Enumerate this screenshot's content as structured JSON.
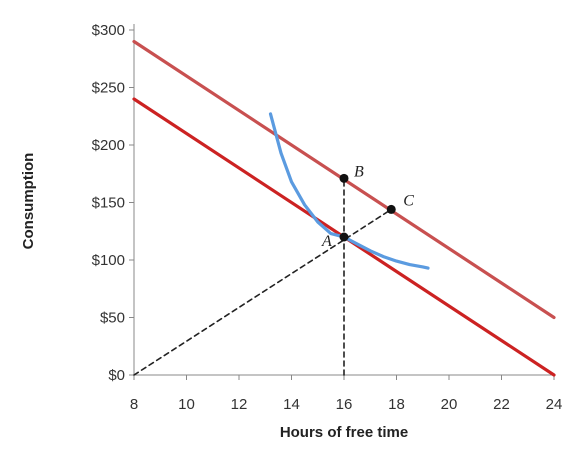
{
  "chart_data": {
    "type": "line",
    "title": "",
    "xlabel": "Hours of free time",
    "ylabel": "Consumption",
    "xlim": [
      8,
      24
    ],
    "ylim": [
      0,
      300
    ],
    "x_ticks": [
      8,
      10,
      12,
      14,
      16,
      18,
      20,
      22,
      24
    ],
    "x_tick_labels": [
      "8",
      "10",
      "12",
      "14",
      "16",
      "18",
      "20",
      "22",
      "24"
    ],
    "y_ticks": [
      0,
      50,
      100,
      150,
      200,
      250,
      300
    ],
    "y_tick_labels": [
      "$0",
      "$50",
      "$100",
      "$150",
      "$200",
      "$250",
      "$300"
    ],
    "grid": false,
    "legend": "none",
    "series": [
      {
        "color": "#cc2222",
        "style": "solid",
        "x": [
          8,
          24
        ],
        "y": [
          240,
          0
        ]
      },
      {
        "color": "#c85050",
        "style": "solid",
        "x": [
          8,
          24
        ],
        "y": [
          290,
          50
        ]
      },
      {
        "color": "#5b9be0",
        "style": "solid",
        "x": [
          13.2,
          13.6,
          14.0,
          14.5,
          15.0,
          15.5,
          16.0,
          16.5,
          17.0,
          17.5,
          18.0,
          18.5,
          19.0,
          19.2
        ],
        "y": [
          227,
          193,
          168,
          148,
          133,
          123,
          120,
          114,
          108,
          103,
          99,
          96,
          94,
          93
        ]
      },
      {
        "color": "#222222",
        "style": "dashed",
        "x": [
          16,
          16
        ],
        "y": [
          0,
          171
        ]
      },
      {
        "color": "#222222",
        "style": "dashed",
        "x": [
          8,
          17.8
        ],
        "y": [
          0,
          144
        ]
      }
    ],
    "points": [
      {
        "label": "A",
        "x": 16,
        "y": 120
      },
      {
        "label": "B",
        "x": 16,
        "y": 171
      },
      {
        "label": "C",
        "x": 17.8,
        "y": 144
      }
    ]
  }
}
